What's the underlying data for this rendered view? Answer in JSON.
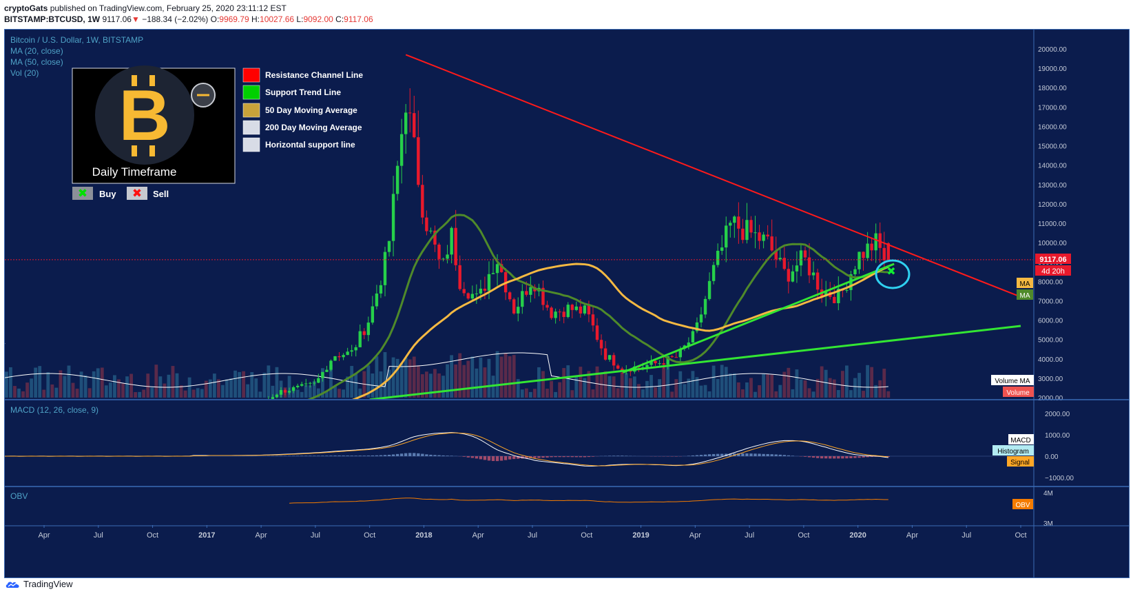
{
  "header": {
    "author": "cryptoGats",
    "published_text": "published on TradingView.com, February 25, 2020 23:11:12 EST",
    "symbol": "BITSTAMP:BTCUSD, 1W",
    "last": "9117.06",
    "change": "−188.34 (−2.02%)",
    "o_label": "O:",
    "o": "9969.79",
    "h_label": "H:",
    "h": "10027.66",
    "l_label": "L:",
    "l": "9092.00",
    "c_label": "C:",
    "c": "9117.06"
  },
  "legend": {
    "title": "Bitcoin / U.S. Dollar, 1W, BITSTAMP",
    "ma20": "MA (20, close)",
    "ma50": "MA (50, close)",
    "vol": "Vol (20)",
    "macd": "MACD (12, 26, close, 9)",
    "obv": "OBV"
  },
  "overlay": {
    "logo_glyph": "B",
    "timeframe": "Daily Timeframe",
    "keys": [
      {
        "label": "Resistance Channel Line",
        "color": "#ff0000"
      },
      {
        "label": "Support Trend Line",
        "color": "#00d000"
      },
      {
        "label": "50 Day Moving Average",
        "color": "#c8a23a"
      },
      {
        "label": "200 Day Moving Average",
        "color": "#d8dce6"
      },
      {
        "label": "Horizontal support line",
        "color": "#d8dce6"
      }
    ],
    "buy": "Buy",
    "sell": "Sell"
  },
  "price_badges": {
    "last": "9117.06",
    "countdown": "4d 20h",
    "ma": "MA",
    "ma2": "MA",
    "volume_ma": "Volume MA",
    "volume": "Volume",
    "macd": "MACD",
    "histogram": "Histogram",
    "signal": "Signal",
    "obv": "OBV"
  },
  "footer": {
    "brand": "TradingView"
  },
  "colors": {
    "bg": "#0b1c4d",
    "up": "#26d04a",
    "down": "#e8192c",
    "resistance": "#ff1a1a",
    "support": "#33e633",
    "ma20": "#4f8a2a",
    "ma50": "#f5b942"
  },
  "chart_data": {
    "type": "candlestick",
    "title": "Bitcoin / U.S. Dollar, 1W, BITSTAMP",
    "price_axis": {
      "ticks": [
        2000,
        3000,
        4000,
        5000,
        6000,
        7000,
        8000,
        9000,
        10000,
        11000,
        12000,
        13000,
        14000,
        15000,
        16000,
        17000,
        18000,
        19000,
        20000
      ],
      "labels": [
        "2000.00",
        "3000.00",
        "4000.00",
        "5000.00",
        "6000.00",
        "7000.00",
        "8000.00",
        "9000.00",
        "10000.00",
        "11000.00",
        "12000.00",
        "13000.00",
        "14000.00",
        "15000.00",
        "16000.00",
        "17000.00",
        "18000.00",
        "19000.00",
        "20000.00"
      ],
      "ylim": [
        1900,
        20500
      ]
    },
    "time_axis": {
      "labels": [
        "Apr",
        "Jul",
        "Oct",
        "2017",
        "Apr",
        "Jul",
        "Oct",
        "2018",
        "Apr",
        "Jul",
        "Oct",
        "2019",
        "Apr",
        "Jul",
        "Oct",
        "2020",
        "Apr",
        "Jul",
        "Oct"
      ],
      "bold": [
        false,
        false,
        false,
        true,
        false,
        false,
        false,
        true,
        false,
        false,
        false,
        true,
        false,
        false,
        false,
        true,
        false,
        false,
        false
      ],
      "months": [
        "2016-04",
        "2016-07",
        "2016-10",
        "2017-01",
        "2017-04",
        "2017-07",
        "2017-10",
        "2018-01",
        "2018-04",
        "2018-07",
        "2018-10",
        "2019-01",
        "2019-04",
        "2019-07",
        "2019-10",
        "2020-01",
        "2020-04",
        "2020-07",
        "2020-10"
      ]
    },
    "close_anchors": [
      {
        "date": "2016-12",
        "price": 850
      },
      {
        "date": "2017-03",
        "price": 1100
      },
      {
        "date": "2017-05",
        "price": 2300
      },
      {
        "date": "2017-07",
        "price": 2700
      },
      {
        "date": "2017-08",
        "price": 4200
      },
      {
        "date": "2017-09",
        "price": 4300
      },
      {
        "date": "2017-10",
        "price": 6100
      },
      {
        "date": "2017-11",
        "price": 9500
      },
      {
        "date": "2017-12",
        "price": 17500
      },
      {
        "date": "2018-01",
        "price": 11500
      },
      {
        "date": "2018-02",
        "price": 8500
      },
      {
        "date": "2018-02",
        "price": 10500
      },
      {
        "date": "2018-03",
        "price": 8000
      },
      {
        "date": "2018-04",
        "price": 7000
      },
      {
        "date": "2018-05",
        "price": 9300
      },
      {
        "date": "2018-06",
        "price": 6500
      },
      {
        "date": "2018-07",
        "price": 8200
      },
      {
        "date": "2018-08",
        "price": 6400
      },
      {
        "date": "2018-09",
        "price": 6600
      },
      {
        "date": "2018-10",
        "price": 6400
      },
      {
        "date": "2018-11",
        "price": 4200
      },
      {
        "date": "2018-12",
        "price": 3500
      },
      {
        "date": "2019-01",
        "price": 3600
      },
      {
        "date": "2019-02",
        "price": 3800
      },
      {
        "date": "2019-03",
        "price": 4100
      },
      {
        "date": "2019-04",
        "price": 5300
      },
      {
        "date": "2019-05",
        "price": 8500
      },
      {
        "date": "2019-06",
        "price": 11000
      },
      {
        "date": "2019-07",
        "price": 10500
      },
      {
        "date": "2019-08",
        "price": 10000
      },
      {
        "date": "2019-09",
        "price": 8300
      },
      {
        "date": "2019-10",
        "price": 9200
      },
      {
        "date": "2019-11",
        "price": 7500
      },
      {
        "date": "2019-12",
        "price": 7200
      },
      {
        "date": "2020-01",
        "price": 9300
      },
      {
        "date": "2020-02",
        "price": 10000
      },
      {
        "date": "2020-02",
        "price": 9117.06
      }
    ],
    "peak": {
      "date": "2017-12",
      "high": 19666
    },
    "last": {
      "value": 9117.06,
      "open": 9969.79,
      "high": 10027.66,
      "low": 9092.0
    },
    "resistance_line": {
      "from": {
        "date": "2017-12",
        "price": 19700
      },
      "to": {
        "date": "2020-10",
        "price": 7200
      }
    },
    "support_lines": [
      {
        "from": {
          "date": "2017-10",
          "price": 1900
        },
        "to": {
          "date": "2020-10",
          "price": 5700
        }
      },
      {
        "from": {
          "date": "2018-12",
          "price": 3300
        },
        "to": {
          "date": "2020-03",
          "price": 8900
        }
      }
    ],
    "macd_axis": {
      "ticks": [
        2000,
        1000,
        0,
        -1000
      ],
      "labels": [
        "2000.00",
        "1000.00",
        "0.00",
        "−1000.00"
      ]
    },
    "obv_axis": {
      "labels": [
        "4M",
        "3M"
      ]
    }
  }
}
